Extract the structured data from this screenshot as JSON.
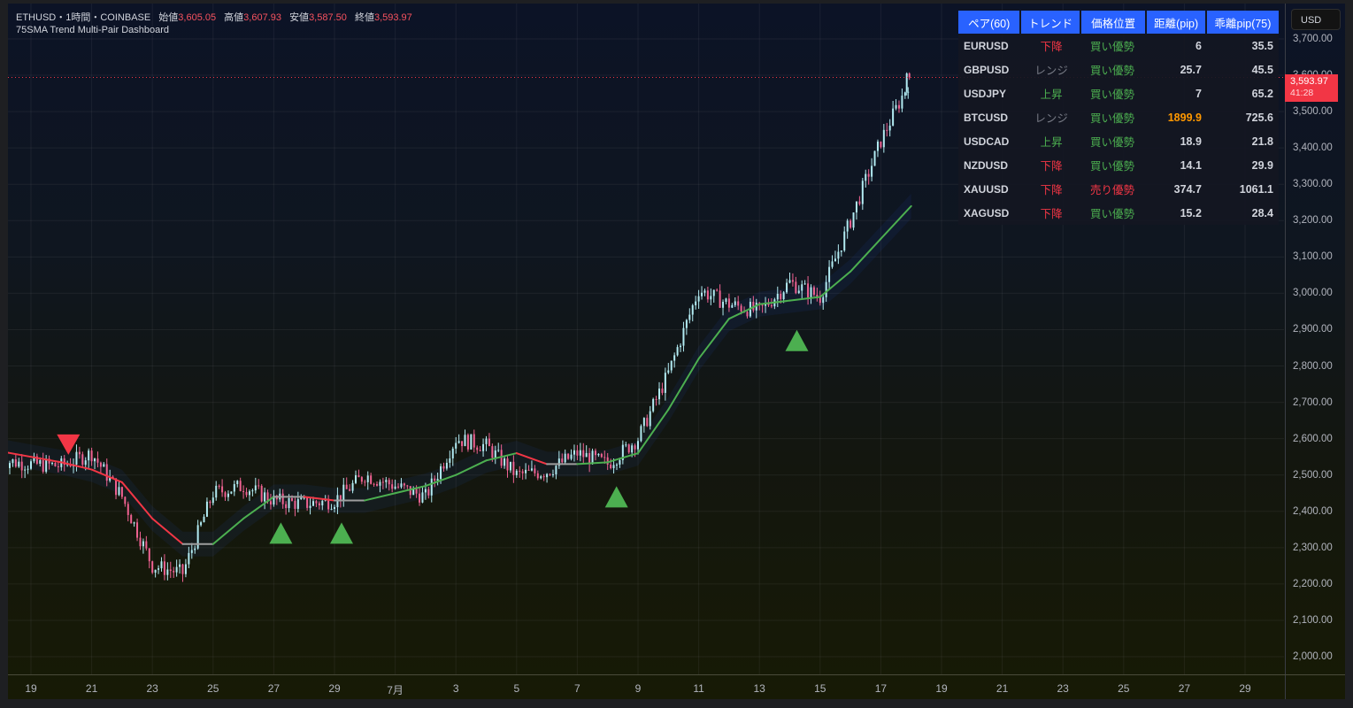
{
  "header": {
    "symbol": "ETHUSD",
    "sep1": "・",
    "interval": "1時間",
    "sep2": "・",
    "exchange": "COINBASE",
    "open_label": "始値",
    "open": "3,605.05",
    "high_label": "高値",
    "high": "3,607.93",
    "low_label": "安値",
    "low": "3,587.50",
    "close_label": "終値",
    "close": "3,593.97",
    "indicator_name": "75SMA Trend Multi-Pair Dashboard"
  },
  "price_axis": {
    "currency_button": "USD",
    "ticks": [
      "3,700.00",
      "3,600.00",
      "3,500.00",
      "3,400.00",
      "3,300.00",
      "3,200.00",
      "3,100.00",
      "3,000.00",
      "2,900.00",
      "2,800.00",
      "2,700.00",
      "2,600.00",
      "2,500.00",
      "2,400.00",
      "2,300.00",
      "2,200.00",
      "2,100.00",
      "2,000.00"
    ],
    "last_price": "3,593.97",
    "countdown": "41:28"
  },
  "time_axis": {
    "ticks": [
      "19",
      "21",
      "23",
      "25",
      "27",
      "29",
      "7月",
      "3",
      "5",
      "7",
      "9",
      "11",
      "13",
      "15",
      "17",
      "19",
      "21",
      "23",
      "25",
      "27",
      "29"
    ]
  },
  "dashboard": {
    "headers": [
      "ペア(60)",
      "トレンド",
      "価格位置",
      "距離(pip)",
      "乖離pip(75)"
    ],
    "rows": [
      {
        "pair": "EURUSD",
        "trend": "下降",
        "position": "買い優勢",
        "distance": "6",
        "deviation": "35.5"
      },
      {
        "pair": "GBPUSD",
        "trend": "レンジ",
        "position": "買い優勢",
        "distance": "25.7",
        "deviation": "45.5"
      },
      {
        "pair": "USDJPY",
        "trend": "上昇",
        "position": "買い優勢",
        "distance": "7",
        "deviation": "65.2"
      },
      {
        "pair": "BTCUSD",
        "trend": "レンジ",
        "position": "買い優勢",
        "distance": "1899.9",
        "deviation": "725.6"
      },
      {
        "pair": "USDCAD",
        "trend": "上昇",
        "position": "買い優勢",
        "distance": "18.9",
        "deviation": "21.8"
      },
      {
        "pair": "NZDUSD",
        "trend": "下降",
        "position": "買い優勢",
        "distance": "14.1",
        "deviation": "29.9"
      },
      {
        "pair": "XAUUSD",
        "trend": "下降",
        "position": "売り優勢",
        "distance": "374.7",
        "deviation": "1061.1"
      },
      {
        "pair": "XAGUSD",
        "trend": "下降",
        "position": "買い優勢",
        "distance": "15.2",
        "deviation": "28.4"
      }
    ]
  },
  "colors": {
    "header_bg": "#2962ff",
    "up_trend": "#4caf50",
    "down_trend": "#f23645",
    "range_trend": "#787b86",
    "buy": "#4caf50",
    "sell": "#f23645",
    "highlight_distance": "#ff9800",
    "candle_up": "#b2ebf2",
    "candle_down": "#f06292",
    "sma_up": "#4caf50",
    "sma_down": "#f23645",
    "sma_flat": "#9e9e9e",
    "last_price_bg": "#f23645"
  },
  "chart_data": {
    "type": "candlestick",
    "title": "ETHUSD · 1時間 · COINBASE",
    "subtitle": "75SMA Trend Multi-Pair Dashboard",
    "xlabel": "",
    "ylabel": "USD",
    "ylim": [
      1960,
      3760
    ],
    "grid": true,
    "x_tick_labels": [
      "19",
      "21",
      "23",
      "25",
      "27",
      "29",
      "7月",
      "3",
      "5",
      "7",
      "9",
      "11",
      "13",
      "15",
      "17",
      "19",
      "21",
      "23",
      "25",
      "27",
      "29"
    ],
    "y_tick_labels": [
      "2,000.00",
      "2,100.00",
      "2,200.00",
      "2,300.00",
      "2,400.00",
      "2,500.00",
      "2,600.00",
      "2,700.00",
      "2,800.00",
      "2,900.00",
      "3,000.00",
      "3,100.00",
      "3,200.00",
      "3,300.00",
      "3,400.00",
      "3,500.00",
      "3,600.00",
      "3,700.00"
    ],
    "ohlc_last": {
      "open": 3605.05,
      "high": 3607.93,
      "low": 3587.5,
      "close": 3593.97
    },
    "price_path_approx": {
      "x_dates": [
        "Jun18",
        "Jun19",
        "Jun20",
        "Jun21",
        "Jun22",
        "Jun23",
        "Jun24",
        "Jun25",
        "Jun26",
        "Jun27",
        "Jun28",
        "Jun29",
        "Jun30",
        "Jul1",
        "Jul2",
        "Jul3",
        "Jul4",
        "Jul5",
        "Jul6",
        "Jul7",
        "Jul8",
        "Jul9",
        "Jul10",
        "Jul11",
        "Jul12",
        "Jul13",
        "Jul14",
        "Jul15",
        "Jul16",
        "Jul17",
        "Jul18"
      ],
      "close": [
        2540,
        2530,
        2525,
        2560,
        2440,
        2250,
        2230,
        2450,
        2470,
        2430,
        2420,
        2430,
        2500,
        2470,
        2440,
        2600,
        2580,
        2500,
        2510,
        2560,
        2530,
        2600,
        2780,
        3010,
        2970,
        2950,
        3030,
        2990,
        3200,
        3420,
        3594
      ]
    },
    "sma75_approx": {
      "values": [
        2565,
        2550,
        2535,
        2515,
        2480,
        2380,
        2310,
        2310,
        2380,
        2440,
        2440,
        2430,
        2430,
        2450,
        2470,
        2500,
        2540,
        2560,
        2530,
        2530,
        2535,
        2560,
        2680,
        2820,
        2930,
        2970,
        2980,
        2990,
        3060,
        3150,
        3240
      ]
    },
    "signals": [
      {
        "type": "sell",
        "marker": "down-triangle",
        "date": "Jun20",
        "price_level": 2580
      },
      {
        "type": "buy",
        "marker": "up-triangle",
        "date": "Jun27",
        "price_level": 2340
      },
      {
        "type": "buy",
        "marker": "up-triangle",
        "date": "Jun29",
        "price_level": 2340
      },
      {
        "type": "buy",
        "marker": "up-triangle",
        "date": "Jul8",
        "price_level": 2440
      },
      {
        "type": "buy",
        "marker": "up-triangle",
        "date": "Jul14",
        "price_level": 2870
      }
    ],
    "legend": []
  }
}
